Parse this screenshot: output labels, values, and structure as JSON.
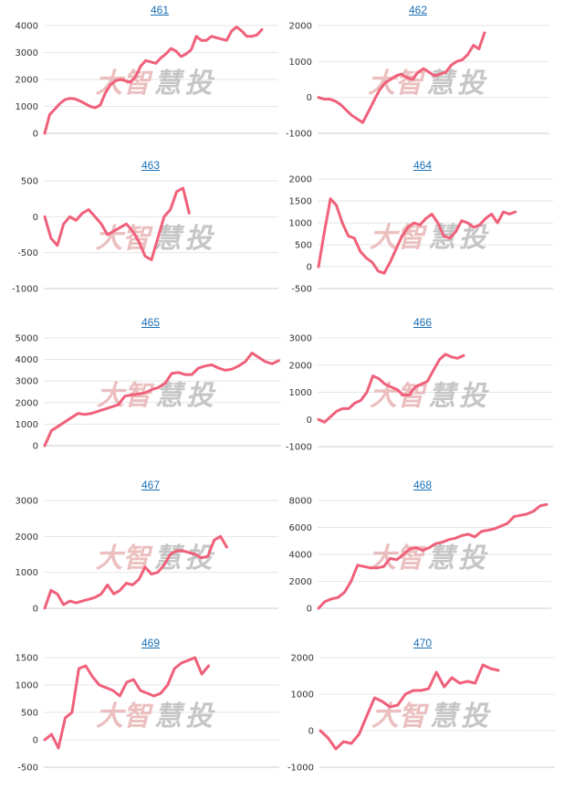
{
  "colors": {
    "line": "#f0607a",
    "title": "#1a6fb5",
    "watermark_red": "#e8b4b4",
    "watermark_gray": "#bdbdbd"
  },
  "chart_data": [
    {
      "type": "line",
      "title": "461",
      "yticks": [
        0,
        1000,
        2000,
        3000,
        4000
      ],
      "ylim": [
        0,
        4000
      ],
      "values": [
        0,
        700,
        900,
        1100,
        1250,
        1300,
        1280,
        1200,
        1100,
        1000,
        950,
        1050,
        1500,
        1800,
        1950,
        2000,
        1950,
        1900,
        2100,
        2500,
        2700,
        2650,
        2600,
        2800,
        2950,
        3150,
        3050,
        2850,
        2950,
        3100,
        3600,
        3450,
        3450,
        3600,
        3550,
        3500,
        3450,
        3800,
        3950,
        3800,
        3600,
        3600,
        3650,
        3850
      ]
    },
    {
      "type": "line",
      "title": "462",
      "yticks": [
        -1000,
        0,
        1000,
        2000
      ],
      "ylim": [
        -1000,
        2000
      ],
      "values": [
        0,
        -50,
        -50,
        -100,
        -200,
        -350,
        -500,
        -600,
        -700,
        -400,
        -100,
        200,
        400,
        500,
        600,
        650,
        550,
        500,
        700,
        800,
        700,
        600,
        650,
        700,
        900,
        1000,
        1050,
        1200,
        1450,
        1350,
        1800
      ]
    },
    {
      "type": "line",
      "title": "463",
      "yticks": [
        -1000,
        -500,
        0,
        500
      ],
      "ylim": [
        -1000,
        500
      ],
      "values": [
        0,
        -300,
        -400,
        -100,
        0,
        -50,
        50,
        100,
        0,
        -100,
        -250,
        -200,
        -150,
        -100,
        -200,
        -350,
        -550,
        -600,
        -300,
        0,
        100,
        350,
        400,
        50
      ]
    },
    {
      "type": "line",
      "title": "464",
      "yticks": [
        -500,
        0,
        500,
        1000,
        1500,
        2000
      ],
      "ylim": [
        -500,
        2000
      ],
      "values": [
        0,
        800,
        1550,
        1400,
        1000,
        700,
        650,
        350,
        200,
        100,
        -100,
        -150,
        100,
        400,
        700,
        900,
        1000,
        950,
        1100,
        1200,
        1000,
        700,
        650,
        800,
        1050,
        1000,
        900,
        950,
        1100,
        1200,
        1000,
        1250,
        1200,
        1250
      ]
    },
    {
      "type": "line",
      "title": "465",
      "yticks": [
        0,
        1000,
        2000,
        3000,
        4000,
        5000
      ],
      "ylim": [
        0,
        5000
      ],
      "values": [
        0,
        700,
        900,
        1100,
        1300,
        1500,
        1450,
        1500,
        1600,
        1700,
        1800,
        1900,
        2300,
        2350,
        2400,
        2450,
        2600,
        2700,
        2900,
        3350,
        3400,
        3300,
        3300,
        3600,
        3700,
        3750,
        3600,
        3500,
        3550,
        3700,
        3900,
        4300,
        4100,
        3900,
        3800,
        3950
      ]
    },
    {
      "type": "line",
      "title": "466",
      "yticks": [
        -1000,
        0,
        1000,
        2000,
        3000
      ],
      "ylim": [
        -1000,
        3000
      ],
      "values": [
        0,
        -100,
        100,
        300,
        400,
        400,
        600,
        700,
        1000,
        1600,
        1500,
        1300,
        1200,
        1100,
        900,
        900,
        1200,
        1300,
        1400,
        1800,
        2200,
        2400,
        2300,
        2250,
        2350
      ]
    },
    {
      "type": "line",
      "title": "467",
      "yticks": [
        0,
        1000,
        2000,
        3000
      ],
      "ylim": [
        0,
        3000
      ],
      "values": [
        0,
        500,
        400,
        100,
        200,
        150,
        200,
        250,
        300,
        400,
        650,
        400,
        500,
        700,
        650,
        800,
        1150,
        950,
        1000,
        1200,
        1500,
        1600,
        1600,
        1550,
        1500,
        1400,
        1450,
        1900,
        2000,
        1700
      ]
    },
    {
      "type": "line",
      "title": "468",
      "yticks": [
        0,
        2000,
        4000,
        6000,
        8000
      ],
      "ylim": [
        0,
        8000
      ],
      "values": [
        0,
        500,
        700,
        800,
        1200,
        2000,
        3200,
        3100,
        3000,
        3000,
        3100,
        3700,
        3600,
        4000,
        4400,
        4500,
        4300,
        4500,
        4800,
        4900,
        5100,
        5200,
        5400,
        5500,
        5300,
        5700,
        5800,
        5900,
        6100,
        6300,
        6800,
        6900,
        7000,
        7200,
        7600,
        7700
      ]
    },
    {
      "type": "line",
      "title": "469",
      "yticks": [
        -500,
        0,
        500,
        1000,
        1500
      ],
      "ylim": [
        -500,
        1500
      ],
      "values": [
        0,
        100,
        -150,
        400,
        500,
        1300,
        1350,
        1150,
        1000,
        950,
        900,
        800,
        1050,
        1100,
        900,
        850,
        800,
        850,
        1000,
        1300,
        1400,
        1450,
        1500,
        1200,
        1350
      ]
    },
    {
      "type": "line",
      "title": "470",
      "yticks": [
        -1000,
        0,
        1000,
        2000
      ],
      "ylim": [
        -1000,
        2000
      ],
      "values": [
        0,
        -200,
        -500,
        -300,
        -350,
        -100,
        400,
        900,
        800,
        650,
        700,
        1000,
        1100,
        1100,
        1150,
        1600,
        1200,
        1450,
        1300,
        1350,
        1300,
        1800,
        1700,
        1650
      ]
    }
  ]
}
